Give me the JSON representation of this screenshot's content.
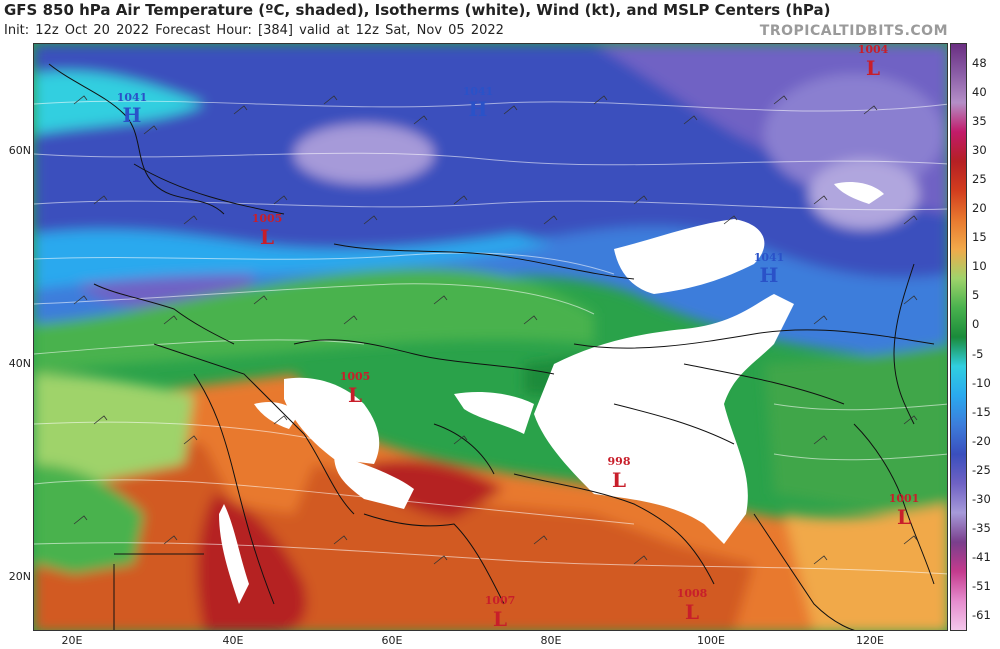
{
  "header": {
    "title": "GFS 850 hPa Air Temperature (ºC, shaded), Isotherms (white), Wind (kt), and MSLP Centers (hPa)",
    "subtitle": "Init: 12z Oct 20 2022   Forecast Hour: [384]   valid at 12z Sat, Nov 05 2022",
    "credit": "TROPICALTIDBITS.COM"
  },
  "axes": {
    "lat_labels": [
      "60N",
      "40N",
      "20N"
    ],
    "lon_labels": [
      "20E",
      "40E",
      "60E",
      "80E",
      "100E",
      "120E"
    ]
  },
  "colorbar": {
    "labels": [
      "48",
      "40",
      "35",
      "30",
      "25",
      "20",
      "15",
      "10",
      "5",
      "0",
      "-5",
      "-10",
      "-15",
      "-20",
      "-25",
      "-30",
      "-35",
      "-41",
      "-51",
      "-61"
    ],
    "colors": [
      "#6a2f82",
      "#8a5da6",
      "#b48fc7",
      "#c21b6a",
      "#b52024",
      "#d23d1e",
      "#e8792f",
      "#f1a94a",
      "#9fd36b",
      "#49b24e",
      "#1a8b3a",
      "#30cfe0",
      "#2aa9ee",
      "#3c7ddb",
      "#3a4fbd",
      "#6f62c4",
      "#a69ad9",
      "#7a3f8c",
      "#c43b8d",
      "#e58ccd",
      "#f3c7ea"
    ]
  },
  "pressure_centers": [
    {
      "type": "H",
      "value": "1041",
      "color": "#2a52c8"
    },
    {
      "type": "H",
      "value": "1041",
      "color": "#2a52c8"
    },
    {
      "type": "L",
      "value": "1004",
      "color": "#c81e2a"
    },
    {
      "type": "L",
      "value": "1005",
      "color": "#c81e2a"
    },
    {
      "type": "H",
      "value": "1041",
      "color": "#2a52c8"
    },
    {
      "type": "L",
      "value": "1005",
      "color": "#c81e2a"
    },
    {
      "type": "L",
      "value": "998",
      "color": "#c81e2a"
    },
    {
      "type": "L",
      "value": "1001",
      "color": "#c81e2a"
    },
    {
      "type": "L",
      "value": "1007",
      "color": "#c81e2a"
    },
    {
      "type": "L",
      "value": "1008",
      "color": "#c81e2a"
    }
  ]
}
